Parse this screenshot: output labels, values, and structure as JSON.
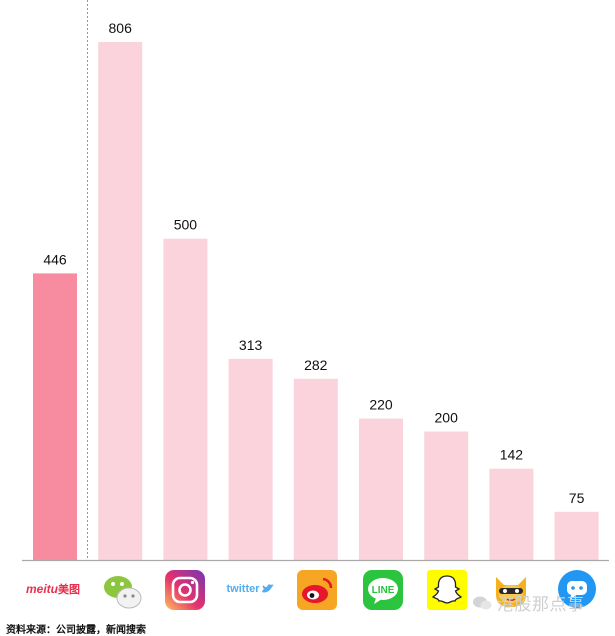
{
  "chart_data": {
    "type": "bar",
    "categories": [
      "meitu 美图",
      "WeChat",
      "Instagram",
      "twitter",
      "Weibo",
      "LINE",
      "Snapchat",
      "YY",
      "Momo"
    ],
    "values": [
      446,
      806,
      500,
      313,
      282,
      220,
      200,
      142,
      75
    ],
    "ylim": [
      0,
      806
    ],
    "grid": false,
    "legend": "none",
    "highlight_index": 0,
    "colors": {
      "highlight": "#f78ba0",
      "bar": "#fbd3dc",
      "axis": "#aaaaaa",
      "divider": "#999999"
    }
  },
  "logos": {
    "meitu": "meitu",
    "meitu_cn": "美图",
    "twitter": "twitter",
    "line": "LINE"
  },
  "icons": [
    "meitu-logo",
    "wechat-icon",
    "instagram-icon",
    "twitter-logo",
    "weibo-icon",
    "line-icon",
    "snapchat-icon",
    "yy-icon",
    "momo-icon"
  ],
  "source": "资料来源：公司披露，新闻搜索",
  "watermark": "港股那点事"
}
